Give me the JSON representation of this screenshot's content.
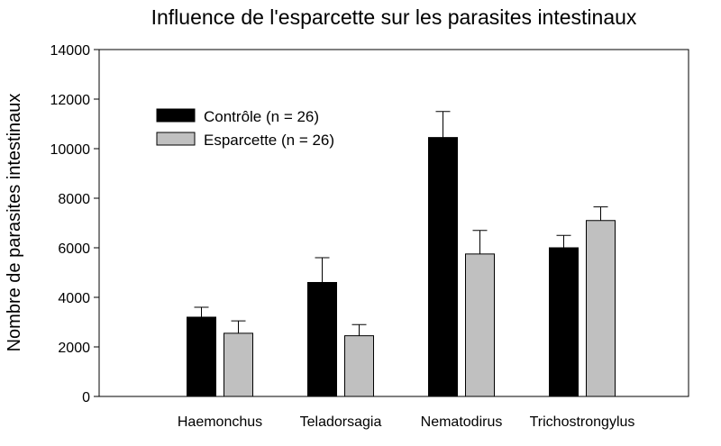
{
  "chart_data": {
    "type": "bar",
    "title": "Influence de l'esparcette sur les parasites intestinaux",
    "xlabel": "",
    "ylabel": "Nombre de parasites intestinaux",
    "categories": [
      "Haemonchus",
      "Teladorsagia",
      "Nematodirus",
      "Trichostrongylus"
    ],
    "series": [
      {
        "name": "Contrôle (n = 26)",
        "color": "#000000",
        "values": [
          3200,
          4600,
          10450,
          6000
        ],
        "errors": [
          400,
          1000,
          1050,
          500
        ]
      },
      {
        "name": "Esparcette (n = 26)",
        "color": "#c0c0c0",
        "values": [
          2550,
          2450,
          5750,
          7100
        ],
        "errors": [
          500,
          450,
          950,
          550
        ]
      }
    ],
    "ylim": [
      0,
      14000
    ],
    "yticks": [
      0,
      2000,
      4000,
      6000,
      8000,
      10000,
      12000,
      14000
    ],
    "grid": false,
    "legend_position": "top-left",
    "error_bars": "upper"
  }
}
